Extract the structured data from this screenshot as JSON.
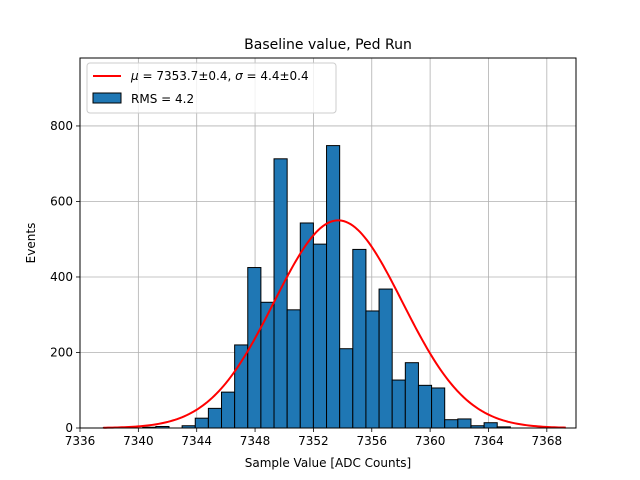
{
  "chart_data": {
    "type": "bar",
    "title": "Baseline value, Ped Run",
    "xlabel": "Sample Value [ADC Counts]",
    "ylabel": "Events",
    "xlim": [
      7336,
      7370
    ],
    "ylim": [
      0,
      980
    ],
    "grid": true,
    "legend_position": "top-left",
    "bin_width": 0.9,
    "x_ticks": [
      7336,
      7340,
      7344,
      7348,
      7352,
      7356,
      7360,
      7364,
      7368
    ],
    "y_ticks": [
      0,
      200,
      400,
      600,
      800
    ],
    "histogram": {
      "name": "RMS = 4.2",
      "color": "#1f77b4",
      "edgecolor": "#000000",
      "bins": [
        {
          "x": 7337.6,
          "count": 1
        },
        {
          "x": 7340.3,
          "count": 2
        },
        {
          "x": 7341.2,
          "count": 4
        },
        {
          "x": 7343.0,
          "count": 6
        },
        {
          "x": 7343.9,
          "count": 26
        },
        {
          "x": 7344.8,
          "count": 52
        },
        {
          "x": 7345.7,
          "count": 95
        },
        {
          "x": 7346.6,
          "count": 220
        },
        {
          "x": 7347.5,
          "count": 425
        },
        {
          "x": 7348.4,
          "count": 333
        },
        {
          "x": 7349.3,
          "count": 713
        },
        {
          "x": 7350.2,
          "count": 313
        },
        {
          "x": 7351.1,
          "count": 543
        },
        {
          "x": 7352.0,
          "count": 487
        },
        {
          "x": 7352.9,
          "count": 748
        },
        {
          "x": 7353.8,
          "count": 210
        },
        {
          "x": 7354.7,
          "count": 473
        },
        {
          "x": 7355.6,
          "count": 310
        },
        {
          "x": 7356.5,
          "count": 368
        },
        {
          "x": 7357.4,
          "count": 127
        },
        {
          "x": 7358.3,
          "count": 173
        },
        {
          "x": 7359.2,
          "count": 113
        },
        {
          "x": 7360.1,
          "count": 106
        },
        {
          "x": 7361.0,
          "count": 22
        },
        {
          "x": 7361.9,
          "count": 24
        },
        {
          "x": 7362.8,
          "count": 6
        },
        {
          "x": 7363.7,
          "count": 14
        },
        {
          "x": 7364.6,
          "count": 3
        }
      ]
    },
    "fit": {
      "type": "gaussian",
      "mu": 7353.7,
      "sigma": 4.4,
      "amplitude": 550,
      "x_range": [
        7337.6,
        7369.3
      ],
      "color": "#ff0000",
      "label_mu": "7353.7±0.4",
      "label_sigma": "4.4±0.4"
    }
  }
}
